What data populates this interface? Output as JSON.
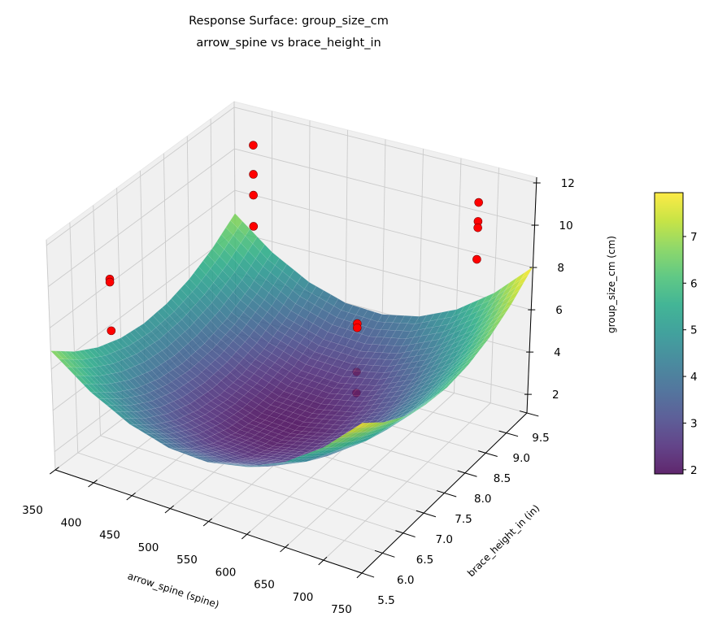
{
  "chart_data": {
    "type": "surface3d",
    "title": "Response Surface: group_size_cm",
    "subtitle": "arrow_spine vs brace_height_in",
    "xlabel": "arrow_spine (spine)",
    "ylabel": "brace_height_in (in)",
    "zlabel": "group_size_cm (cm)",
    "xlim": [
      350,
      750
    ],
    "ylim": [
      5.5,
      9.5
    ],
    "zlim": [
      1.12,
      12.27
    ],
    "x_ticks": [
      "350",
      "400",
      "450",
      "500",
      "550",
      "600",
      "650",
      "700",
      "750"
    ],
    "y_ticks": [
      "5.5",
      "6.0",
      "6.5",
      "7.0",
      "7.5",
      "8.0",
      "8.5",
      "9.0",
      "9.5"
    ],
    "z_ticks": [
      "2",
      "4",
      "6",
      "8",
      "10",
      "12"
    ],
    "grid": true,
    "colormap": "viridis",
    "surface": {
      "x": [
        350,
        400,
        450,
        500,
        550,
        600,
        650,
        700,
        750
      ],
      "y": [
        5.5,
        6.0,
        6.5,
        7.0,
        7.5,
        8.0,
        8.5,
        9.0,
        9.5
      ],
      "z": [
        [
          6.89,
          5.49,
          4.53,
          4.0,
          3.92,
          4.29,
          5.09,
          6.34,
          8.03
        ],
        [
          6.02,
          4.62,
          3.66,
          3.13,
          3.05,
          3.42,
          4.22,
          5.47,
          7.16
        ],
        [
          5.39,
          3.99,
          3.03,
          2.5,
          2.42,
          2.79,
          3.59,
          4.84,
          6.53
        ],
        [
          5.02,
          3.62,
          2.66,
          2.13,
          2.05,
          2.42,
          3.22,
          4.47,
          6.16
        ],
        [
          4.89,
          3.49,
          2.53,
          2.0,
          1.92,
          2.29,
          3.09,
          4.34,
          6.03
        ],
        [
          5.02,
          3.62,
          2.66,
          2.13,
          2.05,
          2.42,
          3.22,
          4.47,
          6.16
        ],
        [
          5.39,
          3.99,
          3.03,
          2.5,
          2.42,
          2.79,
          3.59,
          4.84,
          6.53
        ],
        [
          6.02,
          4.62,
          3.66,
          3.13,
          3.05,
          3.42,
          4.22,
          5.47,
          7.16
        ],
        [
          6.89,
          5.49,
          4.53,
          4.0,
          3.92,
          4.29,
          5.09,
          6.34,
          8.03
        ]
      ]
    },
    "points": [
      {
        "x": 350,
        "y": 6.8,
        "z": 8.2
      },
      {
        "x": 350,
        "y": 6.8,
        "z": 8.05
      },
      {
        "x": 350,
        "y": 6.8,
        "z": 5.7
      },
      {
        "x": 375,
        "y": 9.5,
        "z": 10.4
      },
      {
        "x": 375,
        "y": 9.5,
        "z": 9.0
      },
      {
        "x": 375,
        "y": 9.5,
        "z": 8.0
      },
      {
        "x": 375,
        "y": 9.5,
        "z": 6.5
      },
      {
        "x": 560,
        "y": 8.75,
        "z": 4.9
      },
      {
        "x": 560,
        "y": 8.75,
        "z": 4.7
      },
      {
        "x": 560,
        "y": 8.75,
        "z": 2.6
      },
      {
        "x": 560,
        "y": 8.75,
        "z": 1.6
      },
      {
        "x": 675,
        "y": 9.5,
        "z": 10.4
      },
      {
        "x": 675,
        "y": 9.5,
        "z": 9.5
      },
      {
        "x": 675,
        "y": 9.5,
        "z": 9.2
      },
      {
        "x": 675,
        "y": 9.5,
        "z": 7.7
      }
    ],
    "point_color": "#ff0000",
    "colorbar": {
      "range": [
        1.91,
        7.94
      ],
      "ticks": [
        "2",
        "3",
        "4",
        "5",
        "6",
        "7"
      ]
    }
  }
}
